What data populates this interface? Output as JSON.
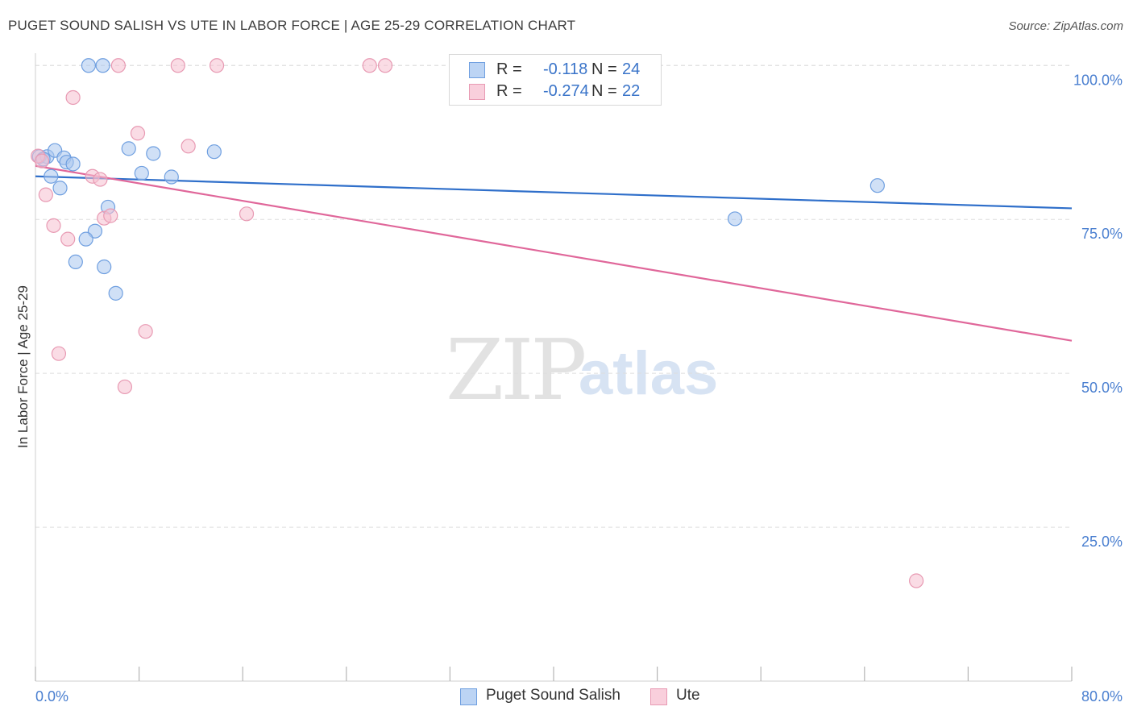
{
  "title": "PUGET SOUND SALISH VS UTE IN LABOR FORCE | AGE 25-29 CORRELATION CHART",
  "source": "Source: ZipAtlas.com",
  "watermark": {
    "zip": "ZIP",
    "atlas": "atlas"
  },
  "legend": {
    "series1": {
      "r_label": "R =",
      "r_value": "-0.118",
      "n_label": "N =",
      "n_value": "24"
    },
    "series2": {
      "r_label": "R =",
      "r_value": "-0.274",
      "n_label": "N =",
      "n_value": "22"
    }
  },
  "bottom_legend": {
    "series1": "Puget Sound Salish",
    "series2": "Ute"
  },
  "colors": {
    "series1_fill": "#a9c6ef",
    "series1_stroke": "#6f9fe0",
    "series1_line": "#2f6fca",
    "series2_fill": "#f6bfd0",
    "series2_stroke": "#e89ab3",
    "series2_line": "#e0679a",
    "grid": "#dddddd",
    "tick_text": "#4a7fd0"
  },
  "chart_data": {
    "type": "scatter",
    "title": "PUGET SOUND SALISH VS UTE IN LABOR FORCE | AGE 25-29 CORRELATION CHART",
    "xlabel": "",
    "ylabel": "In Labor Force | Age 25-29",
    "xlim": [
      0,
      80
    ],
    "ylim": [
      0,
      102
    ],
    "x_tick_labels": [
      "0.0%",
      "80.0%"
    ],
    "y_ticks": [
      {
        "value": 25,
        "label": "25.0%"
      },
      {
        "value": 50,
        "label": "50.0%"
      },
      {
        "value": 75,
        "label": "75.0%"
      },
      {
        "value": 100,
        "label": "100.0%"
      }
    ],
    "series": [
      {
        "name": "Puget Sound Salish",
        "points": [
          [
            0.3,
            85.2
          ],
          [
            0.9,
            85.2
          ],
          [
            1.5,
            86.2
          ],
          [
            2.2,
            85.0
          ],
          [
            2.4,
            84.3
          ],
          [
            2.9,
            84.0
          ],
          [
            1.2,
            82.0
          ],
          [
            1.9,
            80.1
          ],
          [
            4.1,
            100.0
          ],
          [
            5.2,
            100.0
          ],
          [
            7.2,
            86.5
          ],
          [
            8.2,
            82.5
          ],
          [
            9.1,
            85.7
          ],
          [
            10.5,
            81.9
          ],
          [
            13.8,
            86.0
          ],
          [
            5.6,
            77.0
          ],
          [
            4.6,
            73.1
          ],
          [
            3.9,
            71.8
          ],
          [
            3.1,
            68.1
          ],
          [
            5.3,
            67.3
          ],
          [
            6.2,
            63.0
          ],
          [
            54.0,
            75.1
          ],
          [
            65.0,
            80.5
          ],
          [
            0.6,
            84.8
          ]
        ],
        "trend": {
          "x": [
            0,
            80
          ],
          "y": [
            82.0,
            76.8
          ]
        }
      },
      {
        "name": "Ute",
        "points": [
          [
            0.2,
            85.3
          ],
          [
            0.5,
            84.5
          ],
          [
            0.8,
            79.0
          ],
          [
            1.4,
            74.0
          ],
          [
            1.8,
            53.2
          ],
          [
            2.5,
            71.8
          ],
          [
            2.9,
            94.8
          ],
          [
            4.4,
            82.0
          ],
          [
            5.0,
            81.5
          ],
          [
            5.3,
            75.2
          ],
          [
            5.8,
            75.6
          ],
          [
            6.4,
            100.0
          ],
          [
            6.9,
            47.8
          ],
          [
            7.9,
            89.0
          ],
          [
            8.5,
            56.8
          ],
          [
            11.0,
            100.0
          ],
          [
            11.8,
            86.9
          ],
          [
            14.0,
            100.0
          ],
          [
            16.3,
            75.9
          ],
          [
            25.8,
            100.0
          ],
          [
            27.0,
            100.0
          ],
          [
            68.0,
            16.3
          ]
        ],
        "trend": {
          "x": [
            0,
            80
          ],
          "y": [
            83.7,
            55.3
          ]
        }
      }
    ]
  }
}
